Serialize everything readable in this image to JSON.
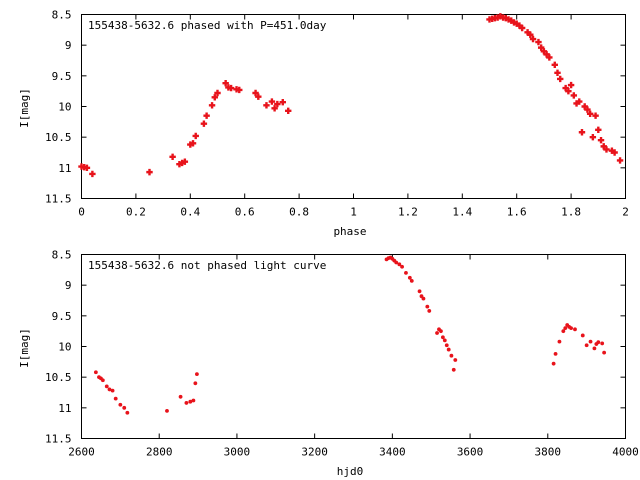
{
  "chart_data": [
    {
      "type": "scatter",
      "title": "155438-5632.6 phased with P=451.0day",
      "xlabel": "phase",
      "ylabel": "I[mag]",
      "xlim": [
        0,
        2
      ],
      "ylim": [
        11.5,
        8.5
      ],
      "y_inverted": true,
      "xticks": [
        "0",
        "0.2",
        "0.4",
        "0.6",
        "0.8",
        "1",
        "1.2",
        "1.4",
        "1.6",
        "1.8",
        "2"
      ],
      "xtick_values": [
        0,
        0.2,
        0.4,
        0.6,
        0.8,
        1.0,
        1.2,
        1.4,
        1.6,
        1.8,
        2.0
      ],
      "yticks": [
        "8.5",
        "9",
        "9.5",
        "10",
        "10.5",
        "11",
        "11.5"
      ],
      "ytick_values": [
        8.5,
        9,
        9.5,
        10,
        10.5,
        11,
        11.5
      ],
      "marker_color": "#e8131b",
      "series": [
        {
          "x": [
            0.0,
            0.01,
            0.02,
            0.04,
            0.25,
            0.335,
            0.36,
            0.37,
            0.38,
            0.4,
            0.41,
            0.42,
            0.45,
            0.46,
            0.48,
            0.49,
            0.5,
            0.53,
            0.54,
            0.55,
            0.57,
            0.58,
            0.64,
            0.65,
            0.68,
            0.7,
            0.71,
            0.72,
            0.74,
            0.76,
            1.5,
            1.51,
            1.52,
            1.53,
            1.54,
            1.55,
            1.56,
            1.57,
            1.58,
            1.59,
            1.6,
            1.61,
            1.62,
            1.64,
            1.65,
            1.66,
            1.68,
            1.69,
            1.7,
            1.71,
            1.72,
            1.74,
            1.75,
            1.76,
            1.78,
            1.79,
            1.8,
            1.81,
            1.82,
            1.83,
            1.84,
            1.85,
            1.86,
            1.87,
            1.88,
            1.89,
            1.9,
            1.91,
            1.92,
            1.93,
            1.95,
            1.96,
            1.98
          ],
          "y": [
            10.98,
            10.99,
            11.0,
            11.1,
            11.07,
            10.82,
            10.94,
            10.92,
            10.9,
            10.62,
            10.6,
            10.48,
            10.28,
            10.15,
            9.98,
            9.85,
            9.78,
            9.62,
            9.69,
            9.7,
            9.72,
            9.73,
            9.78,
            9.84,
            9.98,
            9.92,
            10.03,
            9.96,
            9.93,
            10.07,
            8.58,
            8.57,
            8.56,
            8.55,
            8.53,
            8.55,
            8.56,
            8.58,
            8.6,
            8.63,
            8.65,
            8.68,
            8.72,
            8.79,
            8.83,
            8.9,
            8.95,
            9.04,
            9.1,
            9.15,
            9.2,
            9.32,
            9.45,
            9.55,
            9.7,
            9.75,
            9.65,
            9.82,
            9.95,
            9.92,
            10.42,
            10.0,
            10.05,
            10.12,
            10.5,
            10.15,
            10.38,
            10.55,
            10.65,
            10.7,
            10.72,
            10.75,
            10.88
          ]
        }
      ]
    },
    {
      "type": "scatter",
      "title": "155438-5632.6 not phased light curve",
      "xlabel": "hjd0",
      "ylabel": "I[mag]",
      "xlim": [
        2600,
        4000
      ],
      "ylim": [
        11.5,
        8.5
      ],
      "y_inverted": true,
      "xticks": [
        "2600",
        "2800",
        "3000",
        "3200",
        "3400",
        "3600",
        "3800",
        "4000"
      ],
      "xtick_values": [
        2600,
        2800,
        3000,
        3200,
        3400,
        3600,
        3800,
        4000
      ],
      "yticks": [
        "8.5",
        "9",
        "9.5",
        "10",
        "10.5",
        "11",
        "11.5"
      ],
      "ytick_values": [
        8.5,
        9,
        9.5,
        10,
        10.5,
        11,
        11.5
      ],
      "marker_color": "#e8131b",
      "series": [
        {
          "x": [
            2637,
            2645,
            2650,
            2655,
            2665,
            2672,
            2680,
            2688,
            2700,
            2710,
            2718,
            2820,
            2855,
            2870,
            2880,
            2888,
            2893,
            2897,
            3385,
            3390,
            3395,
            3400,
            3405,
            3410,
            3418,
            3425,
            3435,
            3445,
            3450,
            3470,
            3475,
            3480,
            3490,
            3495,
            3515,
            3520,
            3525,
            3530,
            3535,
            3540,
            3545,
            3552,
            3558,
            3562,
            3815,
            3820,
            3830,
            3840,
            3845,
            3850,
            3855,
            3860,
            3870,
            3890,
            3900,
            3910,
            3920,
            3925,
            3930,
            3940,
            3945
          ],
          "y": [
            10.42,
            10.5,
            10.52,
            10.55,
            10.65,
            10.7,
            10.72,
            10.85,
            10.95,
            11.0,
            11.08,
            11.05,
            10.82,
            10.92,
            10.9,
            10.88,
            10.6,
            10.45,
            8.58,
            8.56,
            8.55,
            8.57,
            8.6,
            8.63,
            8.66,
            8.7,
            8.8,
            8.88,
            8.93,
            9.1,
            9.18,
            9.22,
            9.35,
            9.42,
            9.78,
            9.72,
            9.75,
            9.85,
            9.9,
            9.98,
            10.05,
            10.15,
            10.38,
            10.22,
            10.28,
            10.12,
            9.92,
            9.75,
            9.7,
            9.65,
            9.68,
            9.7,
            9.72,
            9.82,
            9.98,
            9.92,
            10.03,
            9.96,
            9.93,
            9.95,
            10.1
          ]
        }
      ]
    }
  ]
}
